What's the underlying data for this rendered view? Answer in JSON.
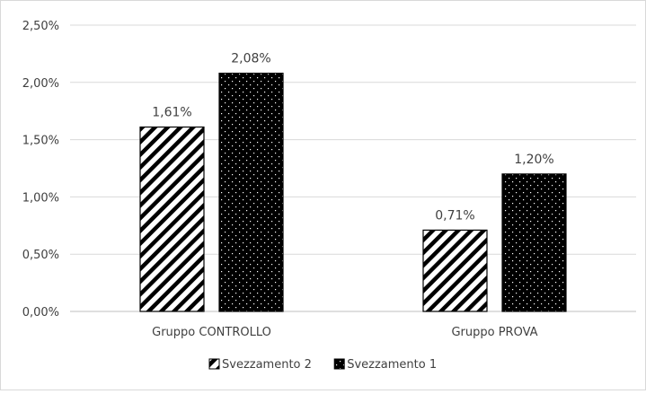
{
  "chart_data": {
    "type": "bar",
    "categories": [
      "Gruppo CONTROLLO",
      "Gruppo PROVA"
    ],
    "series": [
      {
        "name": "Svezzamento 2",
        "values": [
          1.61,
          0.71
        ],
        "labels": [
          "1,61%",
          "0,71%"
        ],
        "pattern": "diagonal-stripes",
        "color": "#000000"
      },
      {
        "name": "Svezzamento 1",
        "values": [
          2.08,
          1.2
        ],
        "labels": [
          "2,08%",
          "1,20%"
        ],
        "pattern": "dots-on-black",
        "color": "#000000"
      }
    ],
    "ylim": [
      0,
      2.5
    ],
    "yticks": [
      0,
      0.5,
      1.0,
      1.5,
      2.0,
      2.5
    ],
    "ytick_labels": [
      "0,00%",
      "0,50%",
      "1,00%",
      "1,50%",
      "2,00%",
      "2,50%"
    ],
    "title": "",
    "xlabel": "",
    "ylabel": "",
    "grid": true,
    "legend_position": "bottom",
    "gridline_color": "#d9d9d9",
    "axis_line_color": "#bfbfbf",
    "text_color": "#404040"
  }
}
